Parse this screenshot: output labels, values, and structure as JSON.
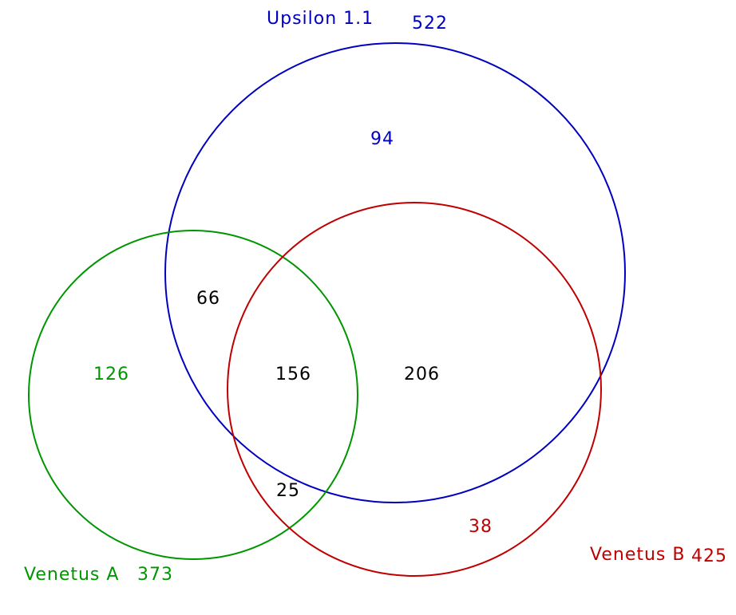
{
  "sets": [
    {
      "id": "upsilon",
      "name": "Upsilon 1.1",
      "total": "522",
      "color": "#0000c0"
    },
    {
      "id": "venetus_a",
      "name": "Venetus A",
      "total": "373",
      "color": "#009600"
    },
    {
      "id": "venetus_b",
      "name": "Venetus B",
      "total": "425",
      "color": "#c00000"
    }
  ],
  "regions": {
    "upsilon_only": "94",
    "venetus_a_only": "126",
    "venetus_b_only": "38",
    "upsilon_venetus_a": "66",
    "upsilon_venetus_b": "206",
    "venetus_a_venetus_b": "25",
    "all_three": "156"
  },
  "colors": {
    "intersection_text": "#000000",
    "background": "#ffffff"
  }
}
